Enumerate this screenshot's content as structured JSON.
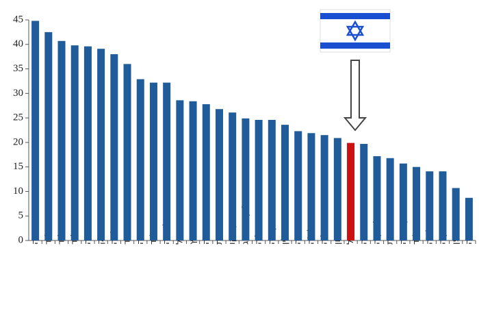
{
  "chart_data": {
    "type": "bar",
    "categories": [
      "שוודיה",
      "פינלנד",
      "הולנד",
      "איסלנד",
      "נורווגיה",
      "דנמרק",
      "בלגיה",
      "ספרד",
      "גרמניה",
      "ניו זילנד",
      "סלובניה",
      "פורטוגל",
      "שווייץ",
      "אוסטריה",
      "צרפת",
      "מקסיקו",
      "לוקסמבורג",
      "אוסטרליה",
      "קנדה",
      "פולין",
      "בריטניה",
      "צ'ילה",
      "איטליה",
      "יוון",
      "ישראל",
      "אסטוניה",
      "סלובקיה",
      "ארצות הברית",
      "דרום קוריאה",
      "אירלנד",
      "צ'כיה",
      "טורקיה",
      "יפן",
      "הונגריה"
    ],
    "values": [
      44.8,
      42.5,
      40.7,
      39.8,
      39.6,
      39.1,
      38.0,
      36.0,
      32.9,
      32.2,
      32.2,
      28.6,
      28.4,
      27.8,
      26.8,
      26.1,
      24.9,
      24.6,
      24.6,
      23.6,
      22.3,
      21.9,
      21.5,
      20.9,
      19.9,
      19.7,
      17.2,
      16.8,
      15.7,
      15.0,
      14.1,
      14.1,
      10.7,
      8.7
    ],
    "colors": [
      "#1f5c99",
      "#1f5c99",
      "#1f5c99",
      "#1f5c99",
      "#1f5c99",
      "#1f5c99",
      "#1f5c99",
      "#1f5c99",
      "#1f5c99",
      "#1f5c99",
      "#1f5c99",
      "#1f5c99",
      "#1f5c99",
      "#1f5c99",
      "#1f5c99",
      "#1f5c99",
      "#1f5c99",
      "#1f5c99",
      "#1f5c99",
      "#1f5c99",
      "#1f5c99",
      "#1f5c99",
      "#1f5c99",
      "#1f5c99",
      "#cc1111",
      "#1f5c99",
      "#1f5c99",
      "#1f5c99",
      "#1f5c99",
      "#1f5c99",
      "#1f5c99",
      "#1f5c99",
      "#1f5c99",
      "#1f5c99"
    ],
    "ylim": [
      0,
      45
    ],
    "yticks": [
      0,
      5,
      10,
      15,
      20,
      25,
      30,
      35,
      40,
      45
    ],
    "grid": false
  }
}
